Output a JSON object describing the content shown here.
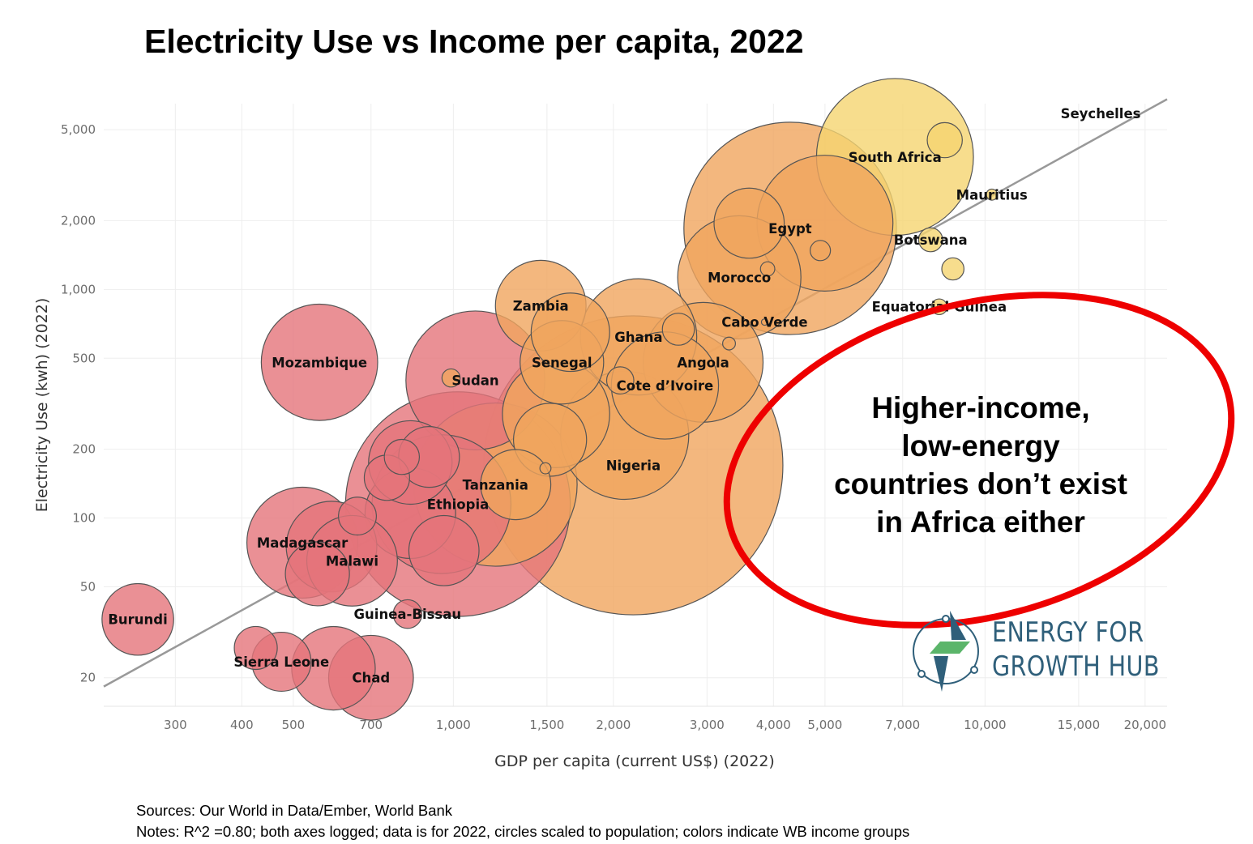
{
  "chart_data": {
    "type": "scatter",
    "title": "Electricity Use vs Income per capita, 2022",
    "xlabel": "GDP per capita (current US$) (2022)",
    "ylabel": "Electricity Use (kwh) (2022)",
    "x_scale": "log",
    "y_scale": "log",
    "xlim": [
      220,
      22000
    ],
    "ylim": [
      15,
      6500
    ],
    "x_ticks": [
      300,
      400,
      500,
      700,
      1000,
      1500,
      2000,
      3000,
      4000,
      5000,
      7000,
      10000,
      15000,
      20000
    ],
    "x_tick_labels": [
      "300",
      "400",
      "500",
      "700",
      "1,000",
      "1,500",
      "2,000",
      "3,000",
      "4,000",
      "5,000",
      "7,000",
      "10,000",
      "15,000",
      "20,000"
    ],
    "y_ticks": [
      20,
      50,
      100,
      200,
      500,
      1000,
      2000,
      5000
    ],
    "y_tick_labels": [
      "20",
      "50",
      "100",
      "200",
      "500",
      "1,000",
      "2,000",
      "5,000"
    ],
    "grid": true,
    "trendline": {
      "x": [
        220,
        22000
      ],
      "y": [
        18.3,
        6800
      ],
      "color": "#999999"
    },
    "colors": {
      "low": "#e5747a",
      "lower_middle": "#f0a55e",
      "upper_middle": "#f5d570",
      "high": "#f5d570"
    },
    "points": [
      {
        "name": "Seychelles",
        "label": "Seychelles",
        "x": 16500,
        "y": 5900,
        "pop": 0.1,
        "group": "high",
        "show_point": false
      },
      {
        "name": "South Africa",
        "label": "South Africa",
        "x": 6770,
        "y": 3800,
        "pop": 60,
        "group": "upper_middle"
      },
      {
        "name": "",
        "label": "",
        "x": 8400,
        "y": 4500,
        "pop": 3,
        "group": "upper_middle"
      },
      {
        "name": "Mauritius",
        "label": "Mauritius",
        "x": 10300,
        "y": 2600,
        "pop": 0.3,
        "group": "upper_middle"
      },
      {
        "name": "Botswana",
        "label": "Botswana",
        "x": 7900,
        "y": 1650,
        "pop": 1.4,
        "group": "upper_middle"
      },
      {
        "name": "",
        "label": "",
        "x": 8700,
        "y": 1230,
        "pop": 1.2,
        "group": "upper_middle"
      },
      {
        "name": "Equatorial Guinea",
        "label": "Equatorial Guinea",
        "x": 8200,
        "y": 840,
        "pop": 0.6,
        "group": "upper_middle"
      },
      {
        "name": "Egypt",
        "label": "Egypt",
        "x": 4300,
        "y": 1850,
        "pop": 110,
        "group": "lower_middle"
      },
      {
        "name": "",
        "label": "",
        "x": 5000,
        "y": 1950,
        "pop": 45,
        "group": "lower_middle"
      },
      {
        "name": "",
        "label": "",
        "x": 3600,
        "y": 1950,
        "pop": 12,
        "group": "lower_middle"
      },
      {
        "name": "",
        "label": "",
        "x": 4900,
        "y": 1480,
        "pop": 1,
        "group": "lower_middle"
      },
      {
        "name": "",
        "label": "",
        "x": 3900,
        "y": 1230,
        "pop": 0.5,
        "group": "lower_middle"
      },
      {
        "name": "Morocco",
        "label": "Morocco",
        "x": 3450,
        "y": 1130,
        "pop": 37,
        "group": "lower_middle"
      },
      {
        "name": "Cabo Verde",
        "label": "Cabo Verde",
        "x": 3850,
        "y": 720,
        "pop": 0.1,
        "group": "lower_middle"
      },
      {
        "name": "",
        "label": "",
        "x": 3300,
        "y": 580,
        "pop": 0.4,
        "group": "lower_middle"
      },
      {
        "name": "Angola",
        "label": "Angola",
        "x": 2950,
        "y": 480,
        "pop": 35,
        "group": "lower_middle"
      },
      {
        "name": "Ghana",
        "label": "Ghana",
        "x": 2230,
        "y": 620,
        "pop": 33,
        "group": "lower_middle"
      },
      {
        "name": "",
        "label": "",
        "x": 2650,
        "y": 670,
        "pop": 2.5,
        "group": "lower_middle"
      },
      {
        "name": "Cote d'Ivoire",
        "label": "Cote d’Ivoire",
        "x": 2500,
        "y": 380,
        "pop": 28,
        "group": "lower_middle"
      },
      {
        "name": "",
        "label": "",
        "x": 2060,
        "y": 400,
        "pop": 1.8,
        "group": "lower_middle"
      },
      {
        "name": "Nigeria",
        "label": "Nigeria",
        "x": 2180,
        "y": 170,
        "pop": 218,
        "group": "lower_middle"
      },
      {
        "name": "",
        "label": "",
        "x": 2100,
        "y": 230,
        "pop": 40,
        "group": "lower_middle"
      },
      {
        "name": "Zambia",
        "label": "Zambia",
        "x": 1460,
        "y": 850,
        "pop": 20,
        "group": "lower_middle"
      },
      {
        "name": "",
        "label": "",
        "x": 1660,
        "y": 650,
        "pop": 15,
        "group": "lower_middle"
      },
      {
        "name": "Senegal",
        "label": "Senegal",
        "x": 1600,
        "y": 480,
        "pop": 17,
        "group": "lower_middle"
      },
      {
        "name": "",
        "label": "",
        "x": 1560,
        "y": 285,
        "pop": 28,
        "group": "lower_middle"
      },
      {
        "name": "",
        "label": "",
        "x": 1520,
        "y": 220,
        "pop": 13,
        "group": "lower_middle"
      },
      {
        "name": "",
        "label": "",
        "x": 1490,
        "y": 165,
        "pop": 0.3,
        "group": "lower_middle"
      },
      {
        "name": "Tanzania",
        "label": "Tanzania",
        "x": 1200,
        "y": 140,
        "pop": 65,
        "group": "lower_middle"
      },
      {
        "name": "",
        "label": "",
        "x": 1310,
        "y": 140,
        "pop": 12,
        "group": "lower_middle"
      },
      {
        "name": "",
        "label": "",
        "x": 990,
        "y": 410,
        "pop": 0.8,
        "group": "lower_middle"
      },
      {
        "name": "Sudan",
        "label": "Sudan",
        "x": 1100,
        "y": 400,
        "pop": 47,
        "group": "low"
      },
      {
        "name": "Mozambique",
        "label": "Mozambique",
        "x": 560,
        "y": 480,
        "pop": 33,
        "group": "low"
      },
      {
        "name": "Ethiopia",
        "label": "Ethiopia",
        "x": 1020,
        "y": 115,
        "pop": 123,
        "group": "low"
      },
      {
        "name": "",
        "label": "",
        "x": 950,
        "y": 115,
        "pop": 47,
        "group": "low"
      },
      {
        "name": "",
        "label": "",
        "x": 830,
        "y": 105,
        "pop": 20,
        "group": "low"
      },
      {
        "name": "",
        "label": "",
        "x": 830,
        "y": 175,
        "pop": 17,
        "group": "low"
      },
      {
        "name": "",
        "label": "",
        "x": 900,
        "y": 185,
        "pop": 9,
        "group": "low"
      },
      {
        "name": "",
        "label": "",
        "x": 800,
        "y": 185,
        "pop": 3,
        "group": "low"
      },
      {
        "name": "",
        "label": "",
        "x": 750,
        "y": 150,
        "pop": 5,
        "group": "low"
      },
      {
        "name": "",
        "label": "",
        "x": 960,
        "y": 72,
        "pop": 12,
        "group": "low"
      },
      {
        "name": "",
        "label": "",
        "x": 660,
        "y": 102,
        "pop": 3.5,
        "group": "low"
      },
      {
        "name": "Madagascar",
        "label": "Madagascar",
        "x": 520,
        "y": 78,
        "pop": 30,
        "group": "low"
      },
      {
        "name": "",
        "label": "",
        "x": 590,
        "y": 75,
        "pop": 20,
        "group": "low"
      },
      {
        "name": "Malawi",
        "label": "Malawi",
        "x": 645,
        "y": 65,
        "pop": 20,
        "group": "low"
      },
      {
        "name": "",
        "label": "",
        "x": 555,
        "y": 57,
        "pop": 10,
        "group": "low"
      },
      {
        "name": "Guinea-Bissau",
        "label": "Guinea-Bissau",
        "x": 820,
        "y": 38,
        "pop": 2,
        "group": "low"
      },
      {
        "name": "Burundi",
        "label": "Burundi",
        "x": 255,
        "y": 36,
        "pop": 12.5,
        "group": "low"
      },
      {
        "name": "",
        "label": "",
        "x": 425,
        "y": 27,
        "pop": 4.5,
        "group": "low"
      },
      {
        "name": "Sierra Leone",
        "label": "Sierra Leone",
        "x": 475,
        "y": 23.5,
        "pop": 8.5,
        "group": "low"
      },
      {
        "name": "",
        "label": "",
        "x": 595,
        "y": 22,
        "pop": 17,
        "group": "low"
      },
      {
        "name": "Chad",
        "label": "Chad",
        "x": 700,
        "y": 20,
        "pop": 17.5,
        "group": "low"
      }
    ]
  },
  "annotation": {
    "lines": [
      "Higher-income,",
      "low-energy",
      "countries don’t exist",
      "in Africa either"
    ],
    "ellipse_color": "#ee0000"
  },
  "logo": {
    "line1": "ENERGY FOR",
    "line2": "GROWTH HUB",
    "colors": {
      "dark": "#2f5f7a",
      "green": "#5bb56a"
    }
  },
  "footer": {
    "sources": "Sources: Our World in Data/Ember, World Bank",
    "notes": "Notes: R^2 =0.80; both axes logged; data is for 2022, circles scaled to population; colors indicate WB income groups"
  }
}
